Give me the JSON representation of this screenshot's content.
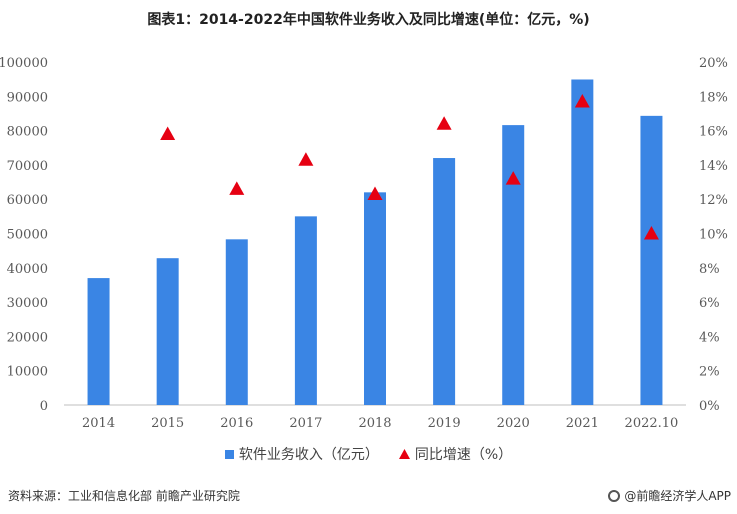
{
  "chart_data": {
    "type": "bar",
    "title": "图表1：2014-2022年中国软件业务收入及同比增速(单位：亿元，%)",
    "categories": [
      "2014",
      "2015",
      "2016",
      "2017",
      "2018",
      "2019",
      "2020",
      "2021",
      "2022.10"
    ],
    "series": [
      {
        "name": "软件业务收入（亿元）",
        "type": "bar",
        "axis": "left",
        "values": [
          37000,
          42800,
          48300,
          55000,
          62000,
          72000,
          81600,
          94900,
          84300
        ]
      },
      {
        "name": "同比增速（%）",
        "type": "scatter",
        "marker": "triangle",
        "axis": "right",
        "values": [
          15.8,
          12.6,
          14.3,
          12.3,
          16.4,
          13.2,
          17.7,
          10.0
        ]
      }
    ],
    "growth_start_index": 1,
    "y_left": {
      "min": 0,
      "max": 100000,
      "step": 10000,
      "ticks": [
        "0",
        "10000",
        "20000",
        "30000",
        "40000",
        "50000",
        "60000",
        "70000",
        "80000",
        "90000",
        "100000"
      ]
    },
    "y_right": {
      "min": 0,
      "max": 20,
      "step": 2,
      "ticks": [
        "0%",
        "2%",
        "4%",
        "6%",
        "8%",
        "10%",
        "12%",
        "14%",
        "16%",
        "18%",
        "20%"
      ]
    },
    "grid": false,
    "legend_position": "bottom",
    "colors": {
      "bar": "#3a85e4",
      "marker": "#e60012",
      "axis": "#bfbfbf",
      "tick_text": "#595959"
    }
  },
  "source": "资料来源：工业和信息化部 前瞻产业研究院",
  "brand": "@前瞻经济学人APP"
}
